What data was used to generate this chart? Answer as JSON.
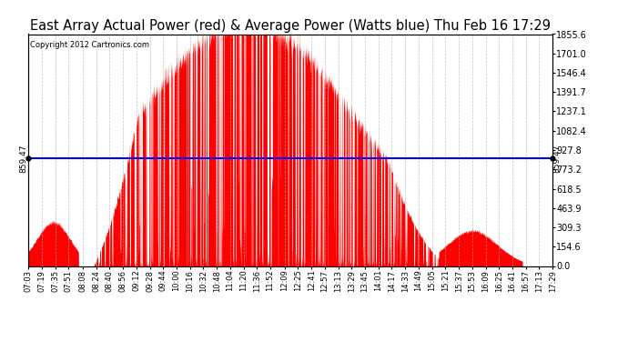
{
  "title": "East Array Actual Power (red) & Average Power (Watts blue) Thu Feb 16 17:29",
  "copyright": "Copyright 2012 Cartronics.com",
  "avg_power": 859.47,
  "ymax": 1855.6,
  "ymin": 0.0,
  "yticks": [
    0.0,
    154.6,
    309.3,
    463.9,
    618.5,
    773.2,
    927.8,
    1082.4,
    1237.1,
    1391.7,
    1546.4,
    1701.0,
    1855.6
  ],
  "fill_color": "#ff0000",
  "line_color": "#0000ff",
  "background_color": "#ffffff",
  "grid_color": "#b0b0b0",
  "title_fontsize": 10.5,
  "xtick_labels": [
    "07:03",
    "07:19",
    "07:35",
    "07:51",
    "08:08",
    "08:24",
    "08:40",
    "08:56",
    "09:12",
    "09:28",
    "09:44",
    "10:00",
    "10:16",
    "10:32",
    "10:48",
    "11:04",
    "11:20",
    "11:36",
    "11:52",
    "12:09",
    "12:25",
    "12:41",
    "12:57",
    "13:13",
    "13:29",
    "13:45",
    "14:01",
    "14:17",
    "14:33",
    "14:49",
    "15:05",
    "15:21",
    "15:37",
    "15:53",
    "16:09",
    "16:25",
    "16:41",
    "16:57",
    "17:13",
    "17:29"
  ]
}
